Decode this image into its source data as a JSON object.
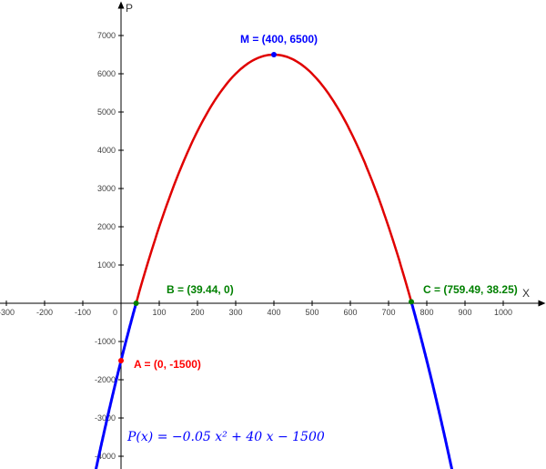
{
  "app": {
    "background_color": "#ffffff"
  },
  "axes": {
    "x_label": "X",
    "y_label": "P",
    "x_ticks": [
      -300,
      -200,
      -100,
      0,
      100,
      200,
      300,
      400,
      500,
      600,
      700,
      800,
      900,
      1000
    ],
    "y_ticks": [
      -4000,
      -3000,
      -2000,
      -1000,
      1000,
      2000,
      3000,
      4000,
      5000,
      6000,
      7000
    ],
    "axis_color": "#000000",
    "tick_label_color": "#404040",
    "grid": "off"
  },
  "chart_data": {
    "type": "line",
    "title": "",
    "xlabel": "X",
    "ylabel": "P",
    "xlim": [
      -316,
      1112
    ],
    "ylim": [
      -4340,
      4340
    ],
    "x_tick_step": 100,
    "y_tick_step": 1000,
    "function": {
      "label": "P(x) = −0.05 x² + 40 x − 1500",
      "a": -0.05,
      "b": 40,
      "c": -1500,
      "color": "#0000ff"
    },
    "segments": [
      {
        "name": "left-branch",
        "x_start": -66,
        "x_end": 39.44,
        "color": "#0000ff",
        "width": 3
      },
      {
        "name": "middle-arc",
        "x_start": 39.44,
        "x_end": 759.49,
        "color": "#e00000",
        "width": 2.5
      },
      {
        "name": "right-branch",
        "x_start": 759.49,
        "x_end": 866,
        "color": "#0000ff",
        "width": 3
      }
    ],
    "points": [
      {
        "name": "M",
        "x": 400,
        "y": 6500,
        "label": "M = (400, 6500)",
        "color": "#0000ff"
      },
      {
        "name": "B",
        "x": 39.44,
        "y": 0,
        "label": "B = (39.44, 0)",
        "color": "#008000"
      },
      {
        "name": "C",
        "x": 759.49,
        "y": 38.25,
        "label": "C = (759.49, 38.25)",
        "color": "#008000"
      },
      {
        "name": "A",
        "x": 0,
        "y": -1500,
        "label": "A = (0, -1500)",
        "color": "#ff0000"
      }
    ]
  }
}
